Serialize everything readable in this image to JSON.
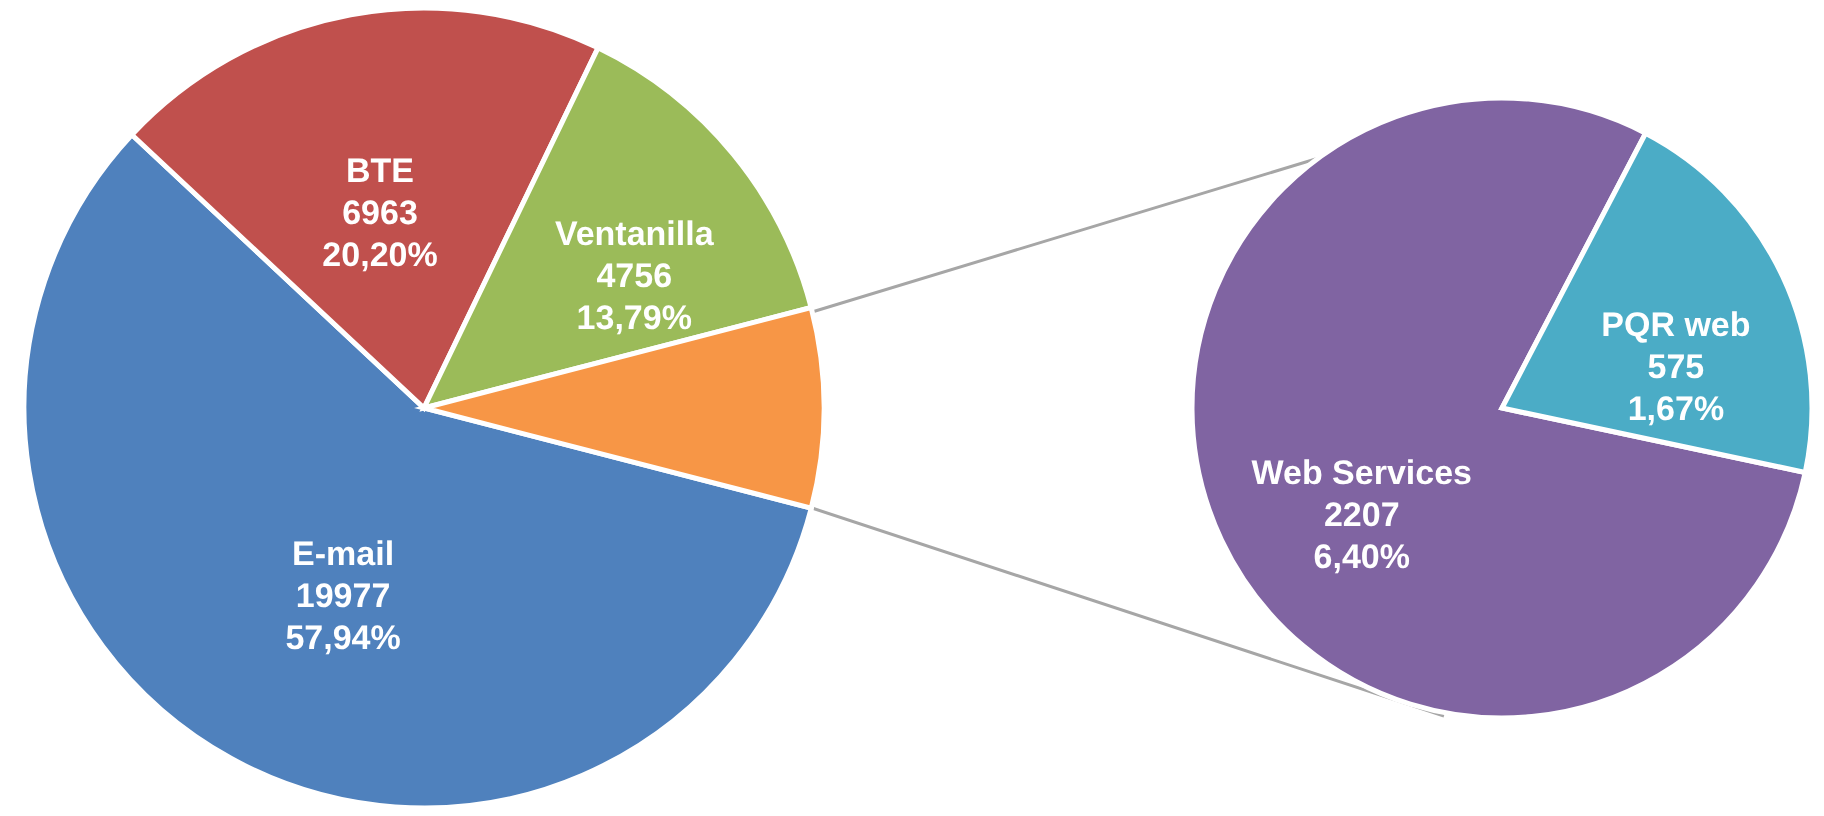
{
  "chart_data": [
    {
      "type": "pie",
      "categories": [
        "E-mail",
        "BTE",
        "Ventanilla",
        null
      ],
      "values": [
        19977,
        6963,
        4756,
        2782
      ],
      "colors": [
        "#4f81bd",
        "#c0504d",
        "#9bbb59",
        "#f79646"
      ],
      "value_labels": [
        "19977\n57,94%",
        "6963\n20,20%",
        "4756\n13,79%",
        null
      ]
    },
    {
      "type": "pie",
      "categories": [
        "Web Services",
        "PQR web"
      ],
      "values": [
        2207,
        575
      ],
      "colors": [
        "#8064a2",
        "#4bacc6"
      ],
      "value_labels": [
        "2207\n6,40%",
        "575\n1,67%"
      ]
    }
  ]
}
